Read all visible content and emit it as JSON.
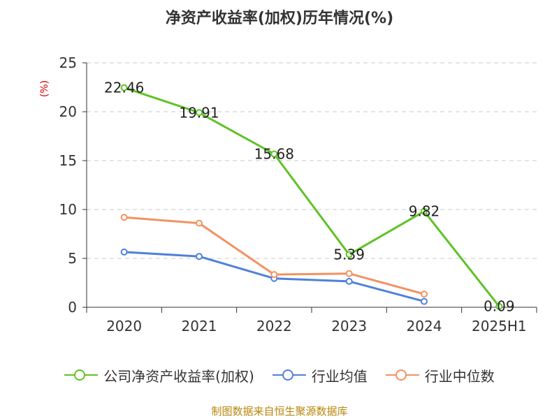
{
  "chart_data": {
    "type": "line",
    "title": "净资产收益率(加权)历年情况(%)",
    "ylabel": "(%)",
    "xlabel": "",
    "categories": [
      "2020",
      "2021",
      "2022",
      "2023",
      "2024",
      "2025H1"
    ],
    "ylim": [
      0,
      25
    ],
    "yticks": [
      0,
      5,
      10,
      15,
      20,
      25
    ],
    "grid": true,
    "legend_position": "bottom",
    "series": [
      {
        "name": "公司净资产收益率(加权)",
        "color": "#5fc225",
        "values": [
          22.46,
          19.91,
          15.68,
          5.39,
          9.82,
          0.09
        ],
        "labels": [
          "22.46",
          "19.91",
          "15.68",
          "5.39",
          "9.82",
          "0.09"
        ]
      },
      {
        "name": "行业均值",
        "color": "#4f81db",
        "values": [
          5.65,
          5.2,
          2.95,
          2.65,
          0.6,
          null
        ]
      },
      {
        "name": "行业中位数",
        "color": "#f49160",
        "values": [
          9.2,
          8.6,
          3.35,
          3.45,
          1.35,
          null
        ]
      }
    ]
  },
  "source_note": "制图数据来自恒生聚源数据库"
}
